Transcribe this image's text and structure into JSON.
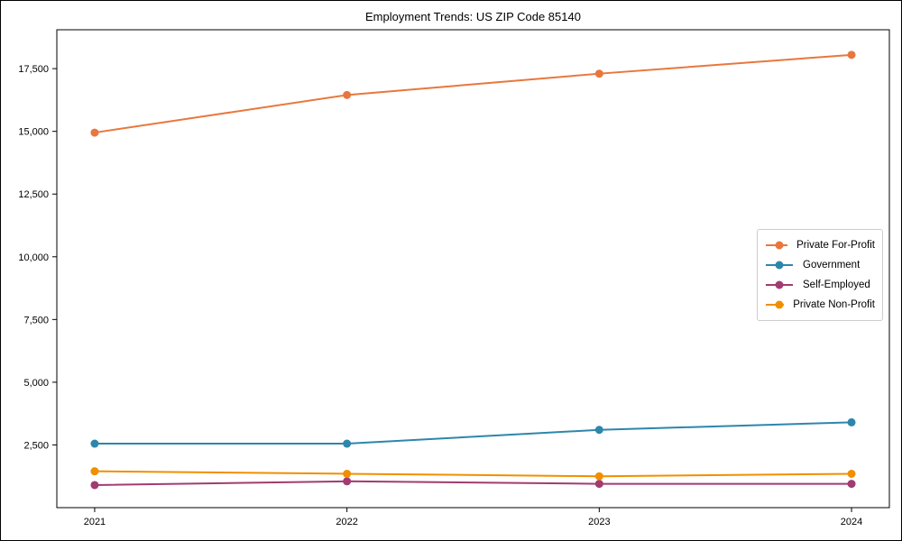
{
  "chart_data": {
    "type": "line",
    "title": "Employment Trends: US ZIP Code 85140",
    "x": [
      2021,
      2022,
      2023,
      2024
    ],
    "x_tick_labels": [
      "2021",
      "2022",
      "2023",
      "2024"
    ],
    "series": [
      {
        "name": "Private For-Profit",
        "color": "#e8773d",
        "values": [
          14950,
          16450,
          17300,
          18050
        ]
      },
      {
        "name": "Government",
        "color": "#2e86ab",
        "values": [
          2550,
          2550,
          3100,
          3400
        ]
      },
      {
        "name": "Self-Employed",
        "color": "#a23b72",
        "values": [
          900,
          1050,
          950,
          950
        ]
      },
      {
        "name": "Private Non-Profit",
        "color": "#f18f01",
        "values": [
          1450,
          1350,
          1250,
          1350
        ]
      }
    ],
    "y_ticks": [
      {
        "value": 2500,
        "label": "2,500"
      },
      {
        "value": 5000,
        "label": "5,000"
      },
      {
        "value": 7500,
        "label": "7,500"
      },
      {
        "value": 10000,
        "label": "10,000"
      },
      {
        "value": 12500,
        "label": "12,500"
      },
      {
        "value": 15000,
        "label": "15,000"
      },
      {
        "value": 17500,
        "label": "17,500"
      }
    ],
    "xlim": [
      2020.85,
      2024.15
    ],
    "ylim": [
      0,
      19050
    ],
    "grid": false,
    "legend_position": "center-right",
    "axis_color": "#000000",
    "background_color": "#ffffff",
    "marker": "circle",
    "line_width": 2,
    "marker_radius": 4.5
  }
}
